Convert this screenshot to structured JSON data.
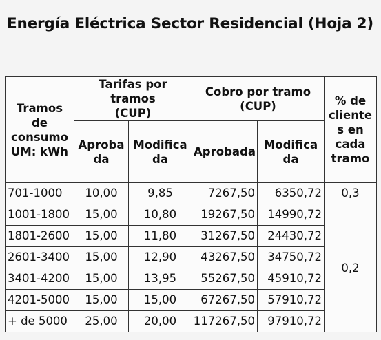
{
  "title": "Energía Eléctrica Sector Residencial (Hoja 2)",
  "table": {
    "header": {
      "tramos_label": "Tramos de consumo UM: kWh",
      "tarifas_label": "Tarifas por tramos (CUP)",
      "cobro_label": "Cobro por tramo (CUP)",
      "clientes_label": "% de clientes en cada tramo",
      "aprobada_label": "Aprobada",
      "modificada_label": "Modificada"
    },
    "rows": [
      {
        "tramo": "701-1000",
        "tarifa_aprobada": "10,00",
        "tarifa_modificada": "9,85",
        "cobro_aprobada": "7267,50",
        "cobro_modificada": "6350,72"
      },
      {
        "tramo": "1001-1800",
        "tarifa_aprobada": "15,00",
        "tarifa_modificada": "10,80",
        "cobro_aprobada": "19267,50",
        "cobro_modificada": "14990,72"
      },
      {
        "tramo": "1801-2600",
        "tarifa_aprobada": "15,00",
        "tarifa_modificada": "11,80",
        "cobro_aprobada": "31267,50",
        "cobro_modificada": "24430,72"
      },
      {
        "tramo": "2601-3400",
        "tarifa_aprobada": "15,00",
        "tarifa_modificada": "12,90",
        "cobro_aprobada": "43267,50",
        "cobro_modificada": "34750,72"
      },
      {
        "tramo": "3401-4200",
        "tarifa_aprobada": "15,00",
        "tarifa_modificada": "13,95",
        "cobro_aprobada": "55267,50",
        "cobro_modificada": "45910,72"
      },
      {
        "tramo": "4201-5000",
        "tarifa_aprobada": "15,00",
        "tarifa_modificada": "15,00",
        "cobro_aprobada": "67267,50",
        "cobro_modificada": "57910,72"
      },
      {
        "tramo": "+ de 5000",
        "tarifa_aprobada": "25,00",
        "tarifa_modificada": "20,00",
        "cobro_aprobada": "117267,50",
        "cobro_modificada": "97910,72"
      }
    ],
    "clientes": {
      "first": "0,3",
      "rest": "0,2"
    }
  }
}
